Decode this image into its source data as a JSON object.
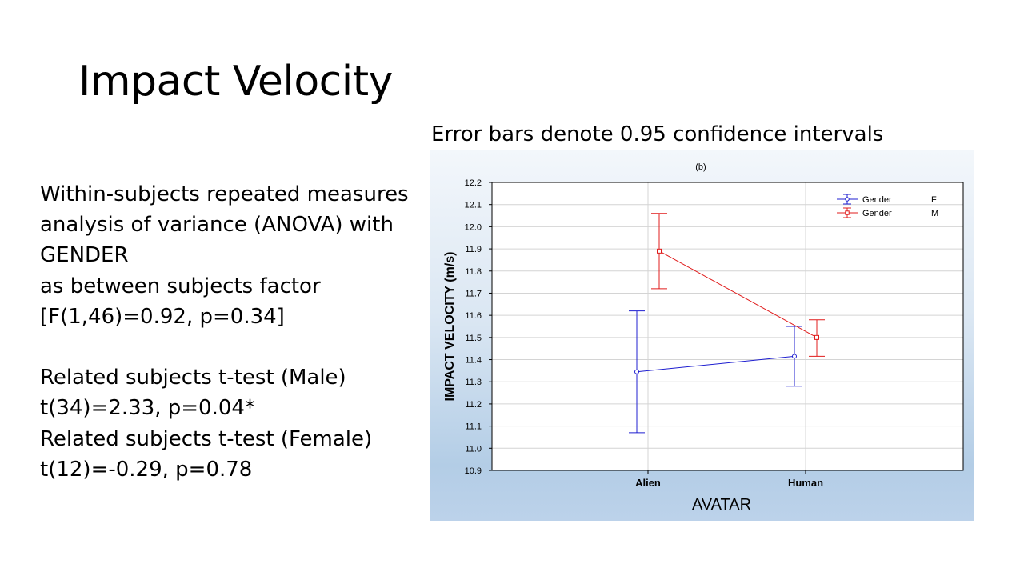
{
  "slide": {
    "title": "Impact Velocity",
    "body_lines": [
      "Within-subjects repeated measures",
      "analysis of variance (ANOVA) with",
      "GENDER",
      "as between subjects factor",
      "[F(1,46)=0.92, p=0.34]",
      "",
      "Related subjects t-test (Male)",
      "t(34)=2.33, p=0.04*",
      "Related subjects t-test (Female)",
      "t(12)=-0.29, p=0.78"
    ],
    "chart_caption": "Error bars denote 0.95 confidence intervals"
  },
  "chart_data": {
    "type": "line",
    "title": "(b)",
    "xlabel": "AVATAR",
    "ylabel": "IMPACT VELOCITY (m/s)",
    "categories": [
      "Alien",
      "Human"
    ],
    "ylim": [
      10.9,
      12.2
    ],
    "yticks": [
      "12.2",
      "12.1",
      "12.0",
      "11.9",
      "11.8",
      "11.7",
      "11.6",
      "11.5",
      "11.4",
      "11.3",
      "11.2",
      "11.1",
      "11.0",
      "10.9"
    ],
    "grid": true,
    "legend_position": "top-right",
    "series": [
      {
        "name": "Gender",
        "level": "F",
        "color": "#1f1fd0",
        "marker": "circle",
        "values": [
          11.345,
          11.415
        ],
        "ci_low": [
          11.07,
          11.28
        ],
        "ci_high": [
          11.62,
          11.55
        ]
      },
      {
        "name": "Gender",
        "level": "M",
        "color": "#e01c1c",
        "marker": "square",
        "values": [
          11.89,
          11.5
        ],
        "ci_low": [
          11.72,
          11.415
        ],
        "ci_high": [
          12.06,
          11.58
        ]
      }
    ]
  }
}
